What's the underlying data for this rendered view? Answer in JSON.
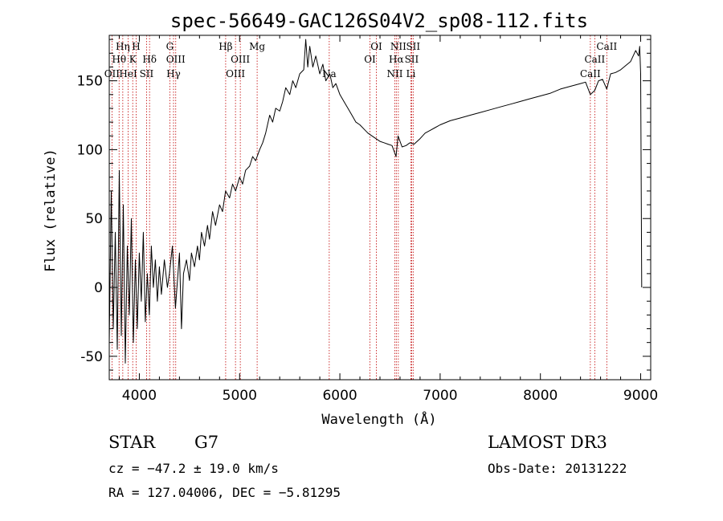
{
  "chart_data": {
    "type": "line",
    "title": "spec-56649-GAC126S04V2_sp08-112.fits",
    "xlabel": "Wavelength (Å)",
    "ylabel": "Flux (relative)",
    "xlim": [
      3700,
      9100
    ],
    "ylim": [
      -67,
      183
    ],
    "x_ticks": [
      4000,
      5000,
      6000,
      7000,
      8000,
      9000
    ],
    "y_ticks": [
      -50,
      0,
      50,
      100,
      150
    ],
    "series": [
      {
        "name": "flux",
        "points": [
          [
            3700,
            -40
          ],
          [
            3720,
            70
          ],
          [
            3740,
            -30
          ],
          [
            3760,
            40
          ],
          [
            3780,
            -45
          ],
          [
            3800,
            85
          ],
          [
            3820,
            -35
          ],
          [
            3840,
            60
          ],
          [
            3860,
            -55
          ],
          [
            3880,
            30
          ],
          [
            3900,
            -20
          ],
          [
            3920,
            50
          ],
          [
            3940,
            -40
          ],
          [
            3960,
            20
          ],
          [
            3980,
            -30
          ],
          [
            4000,
            25
          ],
          [
            4020,
            -10
          ],
          [
            4040,
            40
          ],
          [
            4060,
            -25
          ],
          [
            4080,
            10
          ],
          [
            4100,
            -20
          ],
          [
            4120,
            30
          ],
          [
            4140,
            0
          ],
          [
            4160,
            20
          ],
          [
            4180,
            -10
          ],
          [
            4200,
            15
          ],
          [
            4220,
            -5
          ],
          [
            4250,
            20
          ],
          [
            4280,
            0
          ],
          [
            4300,
            10
          ],
          [
            4330,
            30
          ],
          [
            4360,
            -15
          ],
          [
            4380,
            5
          ],
          [
            4400,
            25
          ],
          [
            4420,
            -30
          ],
          [
            4440,
            10
          ],
          [
            4470,
            20
          ],
          [
            4500,
            5
          ],
          [
            4520,
            25
          ],
          [
            4550,
            15
          ],
          [
            4580,
            30
          ],
          [
            4600,
            20
          ],
          [
            4620,
            40
          ],
          [
            4650,
            30
          ],
          [
            4680,
            45
          ],
          [
            4700,
            35
          ],
          [
            4730,
            55
          ],
          [
            4760,
            45
          ],
          [
            4800,
            60
          ],
          [
            4830,
            55
          ],
          [
            4860,
            70
          ],
          [
            4900,
            65
          ],
          [
            4930,
            75
          ],
          [
            4960,
            70
          ],
          [
            5000,
            80
          ],
          [
            5030,
            75
          ],
          [
            5060,
            85
          ],
          [
            5100,
            88
          ],
          [
            5130,
            95
          ],
          [
            5160,
            92
          ],
          [
            5200,
            100
          ],
          [
            5230,
            105
          ],
          [
            5260,
            112
          ],
          [
            5300,
            125
          ],
          [
            5330,
            120
          ],
          [
            5360,
            130
          ],
          [
            5400,
            128
          ],
          [
            5430,
            135
          ],
          [
            5460,
            145
          ],
          [
            5500,
            140
          ],
          [
            5530,
            150
          ],
          [
            5560,
            145
          ],
          [
            5600,
            155
          ],
          [
            5640,
            158
          ],
          [
            5660,
            180
          ],
          [
            5680,
            160
          ],
          [
            5700,
            175
          ],
          [
            5730,
            160
          ],
          [
            5760,
            168
          ],
          [
            5800,
            155
          ],
          [
            5830,
            162
          ],
          [
            5860,
            150
          ],
          [
            5900,
            155
          ],
          [
            5930,
            145
          ],
          [
            5960,
            148
          ],
          [
            6000,
            140
          ],
          [
            6040,
            135
          ],
          [
            6080,
            130
          ],
          [
            6120,
            125
          ],
          [
            6160,
            120
          ],
          [
            6200,
            118
          ],
          [
            6240,
            115
          ],
          [
            6280,
            112
          ],
          [
            6320,
            110
          ],
          [
            6360,
            108
          ],
          [
            6400,
            106
          ],
          [
            6440,
            105
          ],
          [
            6480,
            104
          ],
          [
            6520,
            103
          ],
          [
            6560,
            95
          ],
          [
            6580,
            110
          ],
          [
            6620,
            102
          ],
          [
            6660,
            103
          ],
          [
            6700,
            105
          ],
          [
            6740,
            104
          ],
          [
            6800,
            108
          ],
          [
            6850,
            112
          ],
          [
            6900,
            114
          ],
          [
            6950,
            116
          ],
          [
            7000,
            118
          ],
          [
            7100,
            121
          ],
          [
            7200,
            123
          ],
          [
            7300,
            125
          ],
          [
            7400,
            127
          ],
          [
            7500,
            129
          ],
          [
            7600,
            131
          ],
          [
            7700,
            133
          ],
          [
            7800,
            135
          ],
          [
            7900,
            137
          ],
          [
            8000,
            139
          ],
          [
            8100,
            141
          ],
          [
            8200,
            144
          ],
          [
            8300,
            146
          ],
          [
            8400,
            148
          ],
          [
            8450,
            149
          ],
          [
            8498,
            140
          ],
          [
            8542,
            143
          ],
          [
            8580,
            150
          ],
          [
            8620,
            151
          ],
          [
            8662,
            144
          ],
          [
            8700,
            155
          ],
          [
            8750,
            156
          ],
          [
            8800,
            158
          ],
          [
            8850,
            161
          ],
          [
            8900,
            164
          ],
          [
            8950,
            172
          ],
          [
            8980,
            168
          ],
          [
            8990,
            175
          ],
          [
            9000,
            155
          ],
          [
            9010,
            0
          ]
        ]
      }
    ],
    "spectral_lines": [
      {
        "name": "OII",
        "wavelength": 3727,
        "tier": 3
      },
      {
        "name": "Hθ",
        "wavelength": 3798,
        "tier": 2
      },
      {
        "name": "Hη",
        "wavelength": 3835,
        "tier": 1
      },
      {
        "name": "HeI",
        "wavelength": 3889,
        "tier": 3
      },
      {
        "name": "K",
        "wavelength": 3934,
        "tier": 2
      },
      {
        "name": "H",
        "wavelength": 3968,
        "tier": 1
      },
      {
        "name": "SII",
        "wavelength": 4072,
        "tier": 3
      },
      {
        "name": "Hδ",
        "wavelength": 4102,
        "tier": 2
      },
      {
        "name": "G",
        "wavelength": 4304,
        "tier": 1
      },
      {
        "name": "Hγ",
        "wavelength": 4341,
        "tier": 3
      },
      {
        "name": "OIII",
        "wavelength": 4363,
        "tier": 2
      },
      {
        "name": "Hβ",
        "wavelength": 4861,
        "tier": 1
      },
      {
        "name": "OIII",
        "wavelength": 4959,
        "tier": 3
      },
      {
        "name": "OIII",
        "wavelength": 5007,
        "tier": 2
      },
      {
        "name": "Mg",
        "wavelength": 5175,
        "tier": 1
      },
      {
        "name": "Na",
        "wavelength": 5894,
        "tier": 3
      },
      {
        "name": "OI",
        "wavelength": 6300,
        "tier": 2
      },
      {
        "name": "OI",
        "wavelength": 6364,
        "tier": 1
      },
      {
        "name": "NII",
        "wavelength": 6548,
        "tier": 3
      },
      {
        "name": "Hα",
        "wavelength": 6563,
        "tier": 2
      },
      {
        "name": "NII",
        "wavelength": 6583,
        "tier": 1
      },
      {
        "name": "Li",
        "wavelength": 6708,
        "tier": 3
      },
      {
        "name": "SII",
        "wavelength": 6716,
        "tier": 2
      },
      {
        "name": "SII",
        "wavelength": 6731,
        "tier": 1
      },
      {
        "name": "CaII",
        "wavelength": 8498,
        "tier": 3
      },
      {
        "name": "CaII",
        "wavelength": 8542,
        "tier": 2
      },
      {
        "name": "CaII",
        "wavelength": 8662,
        "tier": 1
      }
    ],
    "colors": {
      "spectrum": "#000000",
      "lines": "#c00000",
      "axes": "#000000"
    }
  },
  "info": {
    "object_class": "STAR",
    "subclass": "G7",
    "survey": "LAMOST DR3",
    "cz": "cz = −47.2 ± 19.0 km/s",
    "obs_date": "Obs-Date: 20131222",
    "radec": "RA = 127.04006, DEC =  −5.81295"
  }
}
